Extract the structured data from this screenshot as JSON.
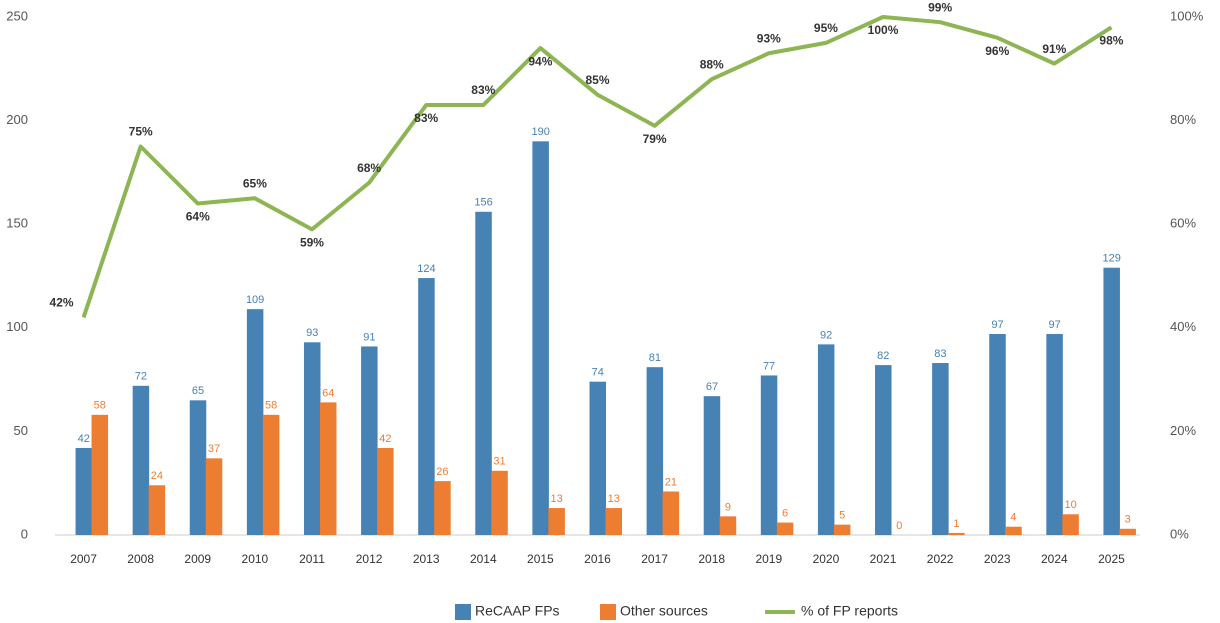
{
  "chart_data": {
    "type": "bar",
    "categories": [
      "2007",
      "2008",
      "2009",
      "2010",
      "2011",
      "2012",
      "2013",
      "2014",
      "2015",
      "2016",
      "2017",
      "2018",
      "2019",
      "2020",
      "2021",
      "2022",
      "2023",
      "2024",
      "2025"
    ],
    "series": [
      {
        "name": "ReCAAP FPs",
        "color": "#4682b4",
        "values": [
          42,
          72,
          65,
          109,
          93,
          91,
          124,
          156,
          190,
          74,
          81,
          67,
          77,
          92,
          82,
          83,
          97,
          97,
          129
        ]
      },
      {
        "name": "Other sources",
        "color": "#ed7d31",
        "values": [
          58,
          24,
          37,
          58,
          64,
          42,
          26,
          31,
          13,
          13,
          21,
          9,
          6,
          5,
          0,
          1,
          4,
          10,
          3
        ]
      },
      {
        "name": "% of FP reports",
        "color": "#8db553",
        "type": "line",
        "axis": "y2",
        "values": [
          42,
          75,
          64,
          65,
          59,
          68,
          83,
          83,
          94,
          85,
          79,
          88,
          93,
          95,
          100,
          99,
          96,
          91,
          98
        ],
        "value_labels": [
          "42%",
          "75%",
          "64%",
          "65%",
          "59%",
          "68%",
          "83%",
          "83%",
          "94%",
          "85%",
          "79%",
          "88%",
          "93%",
          "95%",
          "100%",
          "99%",
          "96%",
          "91%",
          "98%"
        ]
      }
    ],
    "ylim": [
      0,
      250
    ],
    "yticks": [
      0,
      50,
      100,
      150,
      200,
      250
    ],
    "y2lim": [
      0,
      100
    ],
    "y2ticks": [
      {
        "value": 0,
        "label": "0%"
      },
      {
        "value": 20,
        "label": "20%"
      },
      {
        "value": 40,
        "label": "40%"
      },
      {
        "value": 60,
        "label": "60%"
      },
      {
        "value": 80,
        "label": "80%"
      },
      {
        "value": 100,
        "label": "100%"
      }
    ],
    "legend": "bottom"
  }
}
